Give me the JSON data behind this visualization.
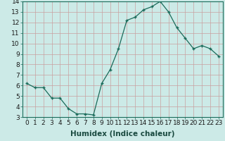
{
  "x": [
    0,
    1,
    2,
    3,
    4,
    5,
    6,
    7,
    8,
    9,
    10,
    11,
    12,
    13,
    14,
    15,
    16,
    17,
    18,
    19,
    20,
    21,
    22,
    23
  ],
  "y": [
    6.2,
    5.8,
    5.8,
    4.8,
    4.8,
    3.8,
    3.3,
    3.3,
    3.2,
    6.2,
    7.5,
    9.5,
    12.2,
    12.5,
    13.2,
    13.5,
    14.0,
    13.0,
    11.5,
    10.5,
    9.5,
    9.8,
    9.5,
    8.8
  ],
  "xlabel": "Humidex (Indice chaleur)",
  "ylabel": "",
  "ylim": [
    3,
    14
  ],
  "xlim": [
    -0.5,
    23.5
  ],
  "line_color": "#1a6b5a",
  "marker": "+",
  "bg_color": "#cceae7",
  "grid_color": "#c8a0a0",
  "tick_label_fontsize": 6.5,
  "xlabel_fontsize": 7.5
}
